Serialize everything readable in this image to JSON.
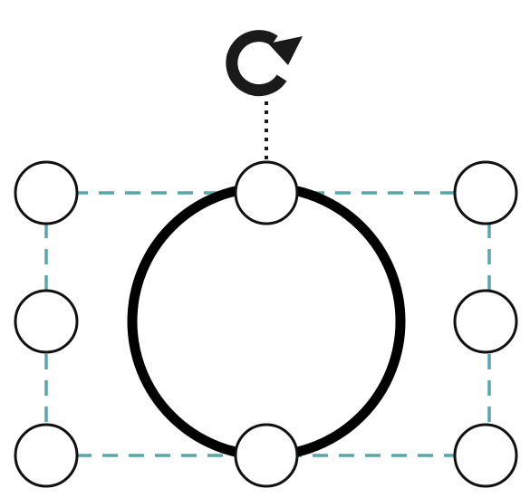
{
  "colors": {
    "background": "#ffffff",
    "selection_box": "#5aa6a8",
    "shape_stroke": "#000000",
    "handle_stroke": "#111111",
    "handle_fill": "#ffffff",
    "rotate_icon": "#1a1a1a"
  },
  "icons": {
    "rotate": "rotate-icon"
  }
}
